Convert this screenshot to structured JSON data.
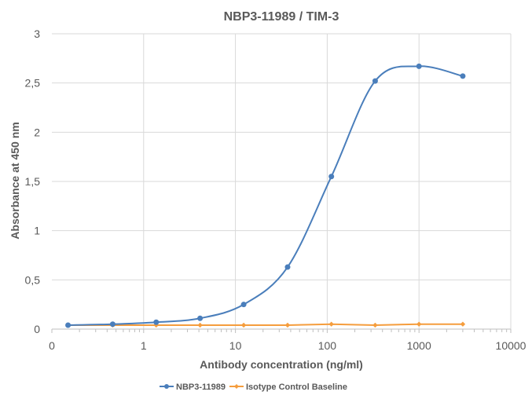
{
  "chart_data": {
    "type": "scatter",
    "title": "NBP3-11989 / TIM-3",
    "xlabel": "Antibody concentration (ng/ml)",
    "ylabel": "Absorbance at 450 nm",
    "xscale": "log",
    "xlim": [
      0.1,
      10000
    ],
    "ylim": [
      0,
      3
    ],
    "x_tick_labels": [
      "0",
      "1",
      "10",
      "100",
      "1000",
      "10000"
    ],
    "y_tick_labels": [
      "0",
      "0,5",
      "1",
      "1,5",
      "2",
      "2,5",
      "3"
    ],
    "grid": true,
    "legend_position": "bottom",
    "series": [
      {
        "name": "NBP3-11989",
        "color": "#4a7ebb",
        "marker": "circle",
        "line": "smooth",
        "x": [
          0.15,
          0.46,
          1.37,
          4.12,
          12.3,
          37,
          111,
          333,
          1000,
          3000
        ],
        "y": [
          0.04,
          0.05,
          0.07,
          0.11,
          0.25,
          0.63,
          1.55,
          2.52,
          2.67,
          2.57
        ]
      },
      {
        "name": "Isotype Control Baseline",
        "color": "#f59d3d",
        "marker": "diamond",
        "line": "straight",
        "x": [
          0.15,
          0.46,
          1.37,
          4.12,
          12.3,
          37,
          111,
          333,
          1000,
          3000
        ],
        "y": [
          0.04,
          0.04,
          0.04,
          0.04,
          0.04,
          0.04,
          0.05,
          0.04,
          0.05,
          0.05
        ]
      }
    ]
  }
}
